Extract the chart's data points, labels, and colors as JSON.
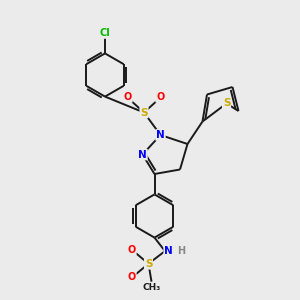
{
  "background_color": "#ebebeb",
  "bond_color": "#1a1a1a",
  "bond_lw": 1.4,
  "atom_colors": {
    "N": "#0000ff",
    "O": "#ff0000",
    "S": "#ccaa00",
    "Cl": "#00bb00",
    "C": "#1a1a1a",
    "H": "#888888"
  },
  "figsize": [
    3.0,
    3.0
  ],
  "dpi": 100
}
